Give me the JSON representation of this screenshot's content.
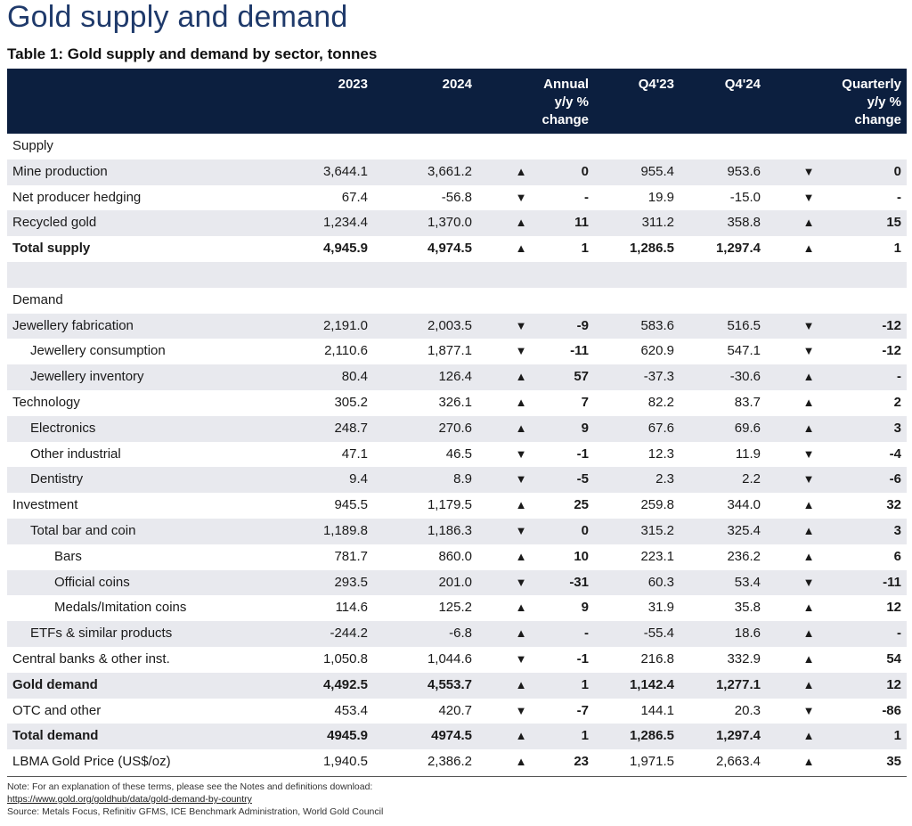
{
  "page_title": "Gold supply and demand",
  "table_title": "Table 1: Gold supply and demand by sector, tonnes",
  "columns": {
    "c2023": "2023",
    "c2024": "2024",
    "annual_1": "Annual",
    "annual_2": "y/y %",
    "annual_3": "change",
    "q423": "Q4'23",
    "q424": "Q4'24",
    "quarterly_1": "Quarterly",
    "quarterly_2": "y/y %",
    "quarterly_3": "change"
  },
  "rows": [
    {
      "label": "Supply",
      "type": "section"
    },
    {
      "label": "Mine production",
      "indent": 0,
      "v2023": "3,644.1",
      "v2024": "3,661.2",
      "arr1": "▲",
      "ann": "0",
      "q423": "955.4",
      "q424": "953.6",
      "arr2": "▼",
      "qtr": "0"
    },
    {
      "label": "Net producer hedging",
      "indent": 0,
      "v2023": "67.4",
      "v2024": "-56.8",
      "arr1": "▼",
      "ann": "-",
      "q423": "19.9",
      "q424": "-15.0",
      "arr2": "▼",
      "qtr": "-"
    },
    {
      "label": "Recycled gold",
      "indent": 0,
      "v2023": "1,234.4",
      "v2024": "1,370.0",
      "arr1": "▲",
      "ann": "11",
      "q423": "311.2",
      "q424": "358.8",
      "arr2": "▲",
      "qtr": "15"
    },
    {
      "label": "Total supply",
      "indent": 0,
      "bold": true,
      "v2023": "4,945.9",
      "v2024": "4,974.5",
      "arr1": "▲",
      "ann": "1",
      "q423": "1,286.5",
      "q424": "1,297.4",
      "arr2": "▲",
      "qtr": "1"
    },
    {
      "label": "",
      "type": "spacer"
    },
    {
      "label": "Demand",
      "type": "section"
    },
    {
      "label": "Jewellery fabrication",
      "indent": 0,
      "v2023": "2,191.0",
      "v2024": "2,003.5",
      "arr1": "▼",
      "ann": "-9",
      "q423": "583.6",
      "q424": "516.5",
      "arr2": "▼",
      "qtr": "-12"
    },
    {
      "label": "Jewellery consumption",
      "indent": 1,
      "v2023": "2,110.6",
      "v2024": "1,877.1",
      "arr1": "▼",
      "ann": "-11",
      "q423": "620.9",
      "q424": "547.1",
      "arr2": "▼",
      "qtr": "-12"
    },
    {
      "label": "Jewellery inventory",
      "indent": 1,
      "v2023": "80.4",
      "v2024": "126.4",
      "arr1": "▲",
      "ann": "57",
      "q423": "-37.3",
      "q424": "-30.6",
      "arr2": "▲",
      "qtr": "-"
    },
    {
      "label": "Technology",
      "indent": 0,
      "v2023": "305.2",
      "v2024": "326.1",
      "arr1": "▲",
      "ann": "7",
      "q423": "82.2",
      "q424": "83.7",
      "arr2": "▲",
      "qtr": "2"
    },
    {
      "label": "Electronics",
      "indent": 1,
      "v2023": "248.7",
      "v2024": "270.6",
      "arr1": "▲",
      "ann": "9",
      "q423": "67.6",
      "q424": "69.6",
      "arr2": "▲",
      "qtr": "3"
    },
    {
      "label": "Other industrial",
      "indent": 1,
      "v2023": "47.1",
      "v2024": "46.5",
      "arr1": "▼",
      "ann": "-1",
      "q423": "12.3",
      "q424": "11.9",
      "arr2": "▼",
      "qtr": "-4"
    },
    {
      "label": "Dentistry",
      "indent": 1,
      "v2023": "9.4",
      "v2024": "8.9",
      "arr1": "▼",
      "ann": "-5",
      "q423": "2.3",
      "q424": "2.2",
      "arr2": "▼",
      "qtr": "-6"
    },
    {
      "label": "Investment",
      "indent": 0,
      "v2023": "945.5",
      "v2024": "1,179.5",
      "arr1": "▲",
      "ann": "25",
      "q423": "259.8",
      "q424": "344.0",
      "arr2": "▲",
      "qtr": "32"
    },
    {
      "label": "Total bar and coin",
      "indent": 1,
      "v2023": "1,189.8",
      "v2024": "1,186.3",
      "arr1": "▼",
      "ann": "0",
      "q423": "315.2",
      "q424": "325.4",
      "arr2": "▲",
      "qtr": "3"
    },
    {
      "label": "Bars",
      "indent": 2,
      "v2023": "781.7",
      "v2024": "860.0",
      "arr1": "▲",
      "ann": "10",
      "q423": "223.1",
      "q424": "236.2",
      "arr2": "▲",
      "qtr": "6"
    },
    {
      "label": "Official coins",
      "indent": 2,
      "v2023": "293.5",
      "v2024": "201.0",
      "arr1": "▼",
      "ann": "-31",
      "q423": "60.3",
      "q424": "53.4",
      "arr2": "▼",
      "qtr": "-11"
    },
    {
      "label": "Medals/Imitation coins",
      "indent": 2,
      "v2023": "114.6",
      "v2024": "125.2",
      "arr1": "▲",
      "ann": "9",
      "q423": "31.9",
      "q424": "35.8",
      "arr2": "▲",
      "qtr": "12"
    },
    {
      "label": "ETFs & similar products",
      "indent": 1,
      "v2023": "-244.2",
      "v2024": "-6.8",
      "arr1": "▲",
      "ann": "-",
      "q423": "-55.4",
      "q424": "18.6",
      "arr2": "▲",
      "qtr": "-"
    },
    {
      "label": "Central banks & other inst.",
      "indent": 0,
      "v2023": "1,050.8",
      "v2024": "1,044.6",
      "arr1": "▼",
      "ann": "-1",
      "q423": "216.8",
      "q424": "332.9",
      "arr2": "▲",
      "qtr": "54"
    },
    {
      "label": "Gold demand",
      "indent": 0,
      "bold": true,
      "v2023": "4,492.5",
      "v2024": "4,553.7",
      "arr1": "▲",
      "ann": "1",
      "q423": "1,142.4",
      "q424": "1,277.1",
      "arr2": "▲",
      "qtr": "12"
    },
    {
      "label": "OTC and other",
      "indent": 0,
      "v2023": "453.4",
      "v2024": "420.7",
      "arr1": "▼",
      "ann": "-7",
      "q423": "144.1",
      "q424": "20.3",
      "arr2": "▼",
      "qtr": "-86"
    },
    {
      "label": "Total demand",
      "indent": 0,
      "bold": true,
      "v2023": "4945.9",
      "v2024": "4974.5",
      "arr1": "▲",
      "ann": "1",
      "q423": "1,286.5",
      "q424": "1,297.4",
      "arr2": "▲",
      "qtr": "1"
    },
    {
      "label": "LBMA Gold Price (US$/oz)",
      "indent": 0,
      "v2023": "1,940.5",
      "v2024": "2,386.2",
      "arr1": "▲",
      "ann": "23",
      "q423": "1,971.5",
      "q424": "2,663.4",
      "arr2": "▲",
      "qtr": "35"
    }
  ],
  "notes": {
    "line1": "Note: For an explanation of these terms, please see the Notes and definitions download:",
    "link": "https://www.gold.org/goldhub/data/gold-demand-by-country",
    "source": "Source: Metals Focus, Refinitiv GFMS, ICE Benchmark Administration, World Gold Council"
  },
  "colors": {
    "header_bg": "#0c1f3f",
    "title": "#1f3a6b",
    "shade": "#e8e9ee"
  }
}
